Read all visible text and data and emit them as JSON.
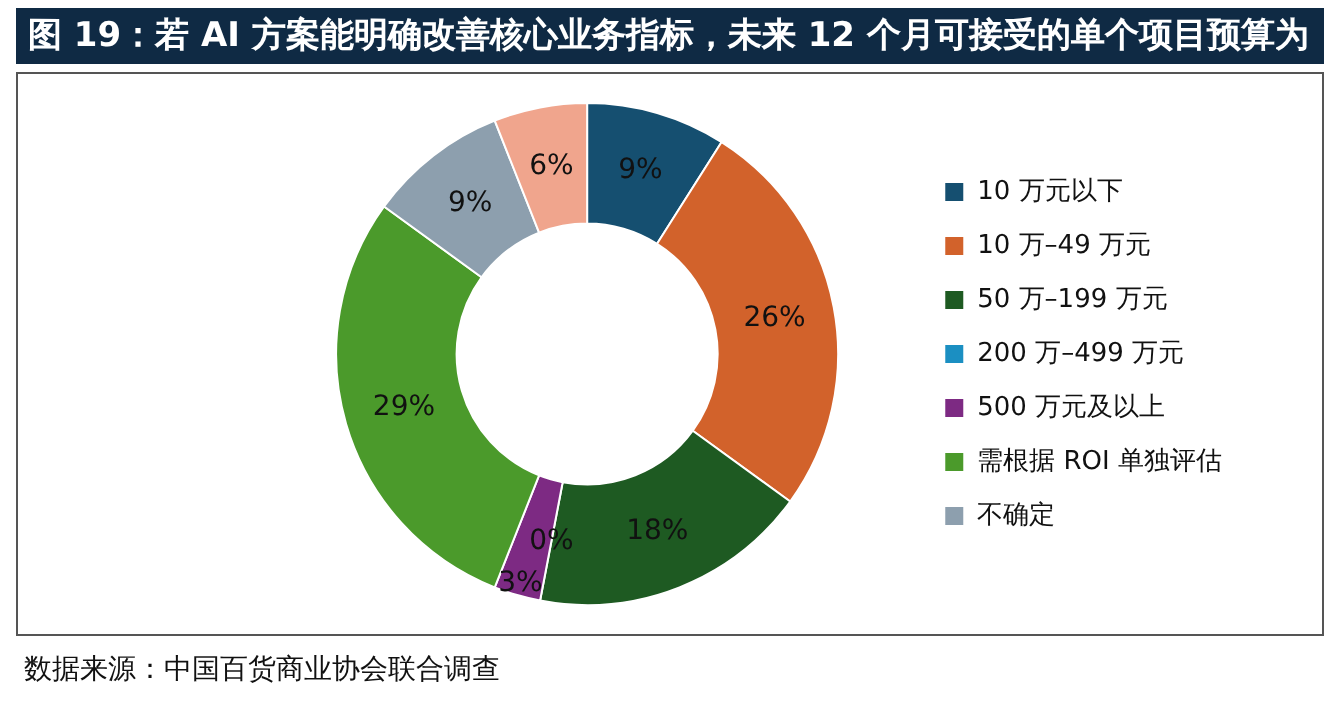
{
  "chart_data": {
    "type": "donut",
    "title": "图 19：若 AI 方案能明确改善核心业务指标，未来 12 个月可接受的单个项目预算为",
    "categories": [
      "10 万元以下",
      "10 万–49 万元",
      "50 万–199 万元",
      "200 万–499 万元",
      "500 万元及以上",
      "需根据 ROI 单独评估",
      "不确定",
      null
    ],
    "values": [
      9,
      26,
      18,
      0,
      3,
      29,
      9,
      6
    ],
    "value_labels": [
      "9%",
      "26%",
      "18%",
      "0%",
      "3%",
      "29%",
      "9%",
      "6%"
    ],
    "colors": [
      "#154f70",
      "#d2622b",
      "#1e5a22",
      "#1b8fc2",
      "#7d2a83",
      "#4b9a2b",
      "#8d9fae",
      "#f0a58d"
    ],
    "legend": "right",
    "annotations": [
      "数据来源：中国百货商业协会联合调查"
    ]
  }
}
